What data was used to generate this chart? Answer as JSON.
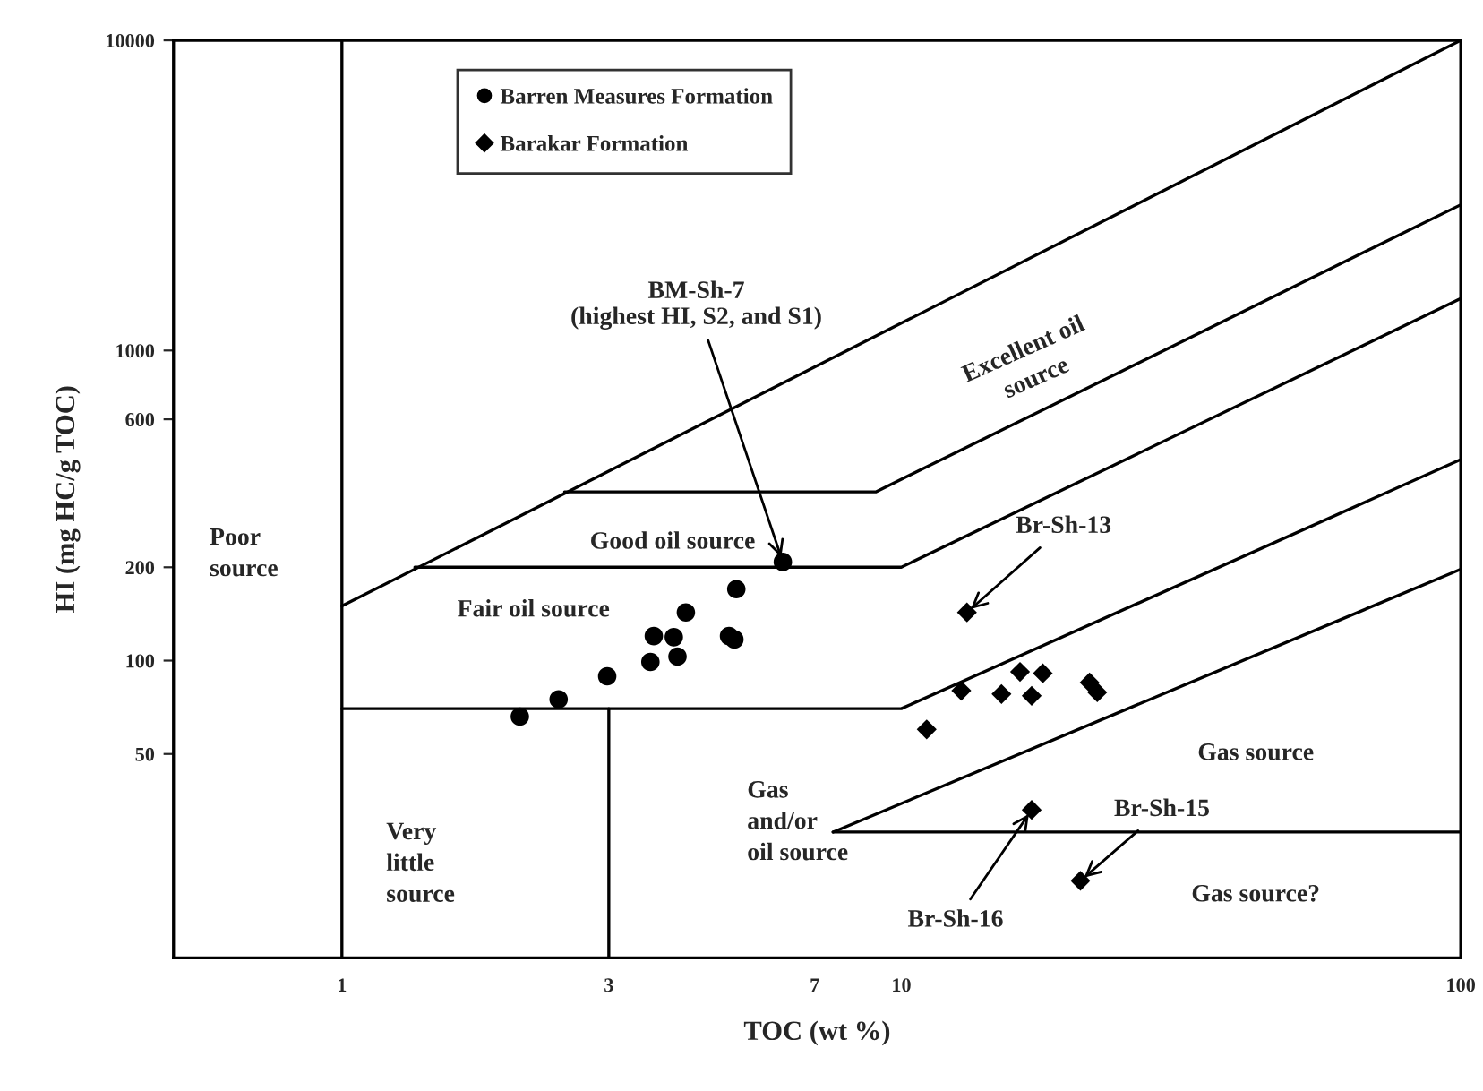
{
  "chart_data": {
    "type": "scatter",
    "xlabel": "TOC (wt %)",
    "ylabel": "HI (mg HC/g TOC)",
    "log": "xy",
    "xlim": [
      0.5,
      100
    ],
    "ylim": [
      11,
      10000
    ],
    "xticks": [
      1,
      3,
      7,
      10,
      100
    ],
    "yticks": [
      50,
      100,
      200,
      600,
      1000,
      10000
    ],
    "grid": false,
    "legend": "top left",
    "series": [
      {
        "name": "Barren Measures Formation",
        "marker": "circle",
        "color": "#000000",
        "x": [
          2.08,
          2.44,
          2.98,
          3.56,
          3.61,
          3.92,
          3.98,
          4.12,
          4.92,
          5.03,
          5.07,
          6.14
        ],
        "values": [
          66,
          75,
          89,
          99,
          120,
          119,
          103,
          143,
          120,
          117,
          170,
          208
        ]
      },
      {
        "name": "Barakar Formation",
        "marker": "diamond",
        "color": "#000000",
        "x": [
          11.1,
          12.8,
          13.1,
          15.1,
          16.3,
          17.1,
          17.9,
          17.1,
          21.7,
          22.4,
          20.9
        ],
        "values": [
          60,
          80,
          143,
          78,
          92,
          77,
          91,
          33,
          85,
          79,
          19.5
        ]
      },
      {
        "type": "line",
        "color": "#000000",
        "x": [
          1,
          1
        ],
        "values": [
          11,
          10000
        ]
      },
      {
        "type": "line",
        "color": "#000000",
        "x": [
          1,
          100
        ],
        "values": [
          150,
          10000
        ]
      },
      {
        "type": "line",
        "color": "#000000",
        "x": [
          2.5,
          9.0,
          100
        ],
        "values": [
          350,
          350,
          2950
        ]
      },
      {
        "type": "line",
        "color": "#000000",
        "x": [
          1.35,
          10,
          100
        ],
        "values": [
          200,
          200,
          1470
        ]
      },
      {
        "type": "line",
        "color": "#000000",
        "x": [
          1,
          10,
          100
        ],
        "values": [
          70,
          70,
          445
        ]
      },
      {
        "type": "line",
        "color": "#000000",
        "x": [
          3,
          3
        ],
        "values": [
          11,
          70
        ]
      },
      {
        "type": "line",
        "color": "#000000",
        "x": [
          7.55,
          100
        ],
        "values": [
          28,
          197
        ]
      },
      {
        "type": "line",
        "color": "#000000",
        "x": [
          7.55,
          100
        ],
        "values": [
          28,
          28
        ]
      }
    ],
    "annotations": [
      {
        "text": "BM-Sh-7\n(highest HI, S2, and S1)",
        "x": 6.14,
        "y": 208
      },
      {
        "text": "Br-Sh-13",
        "x": 13.1,
        "y": 143
      },
      {
        "text": "Br-Sh-16",
        "x": 17.1,
        "y": 33
      },
      {
        "text": "Br-Sh-15",
        "x": 20.9,
        "y": 19.5
      },
      "Poor\nsource",
      "Excellent oil\nsource",
      "Good oil source",
      "Fair oil source",
      "Very\nlittle\nsource",
      "Gas\nand/or\noil source",
      "Gas source",
      "Gas source?"
    ]
  }
}
